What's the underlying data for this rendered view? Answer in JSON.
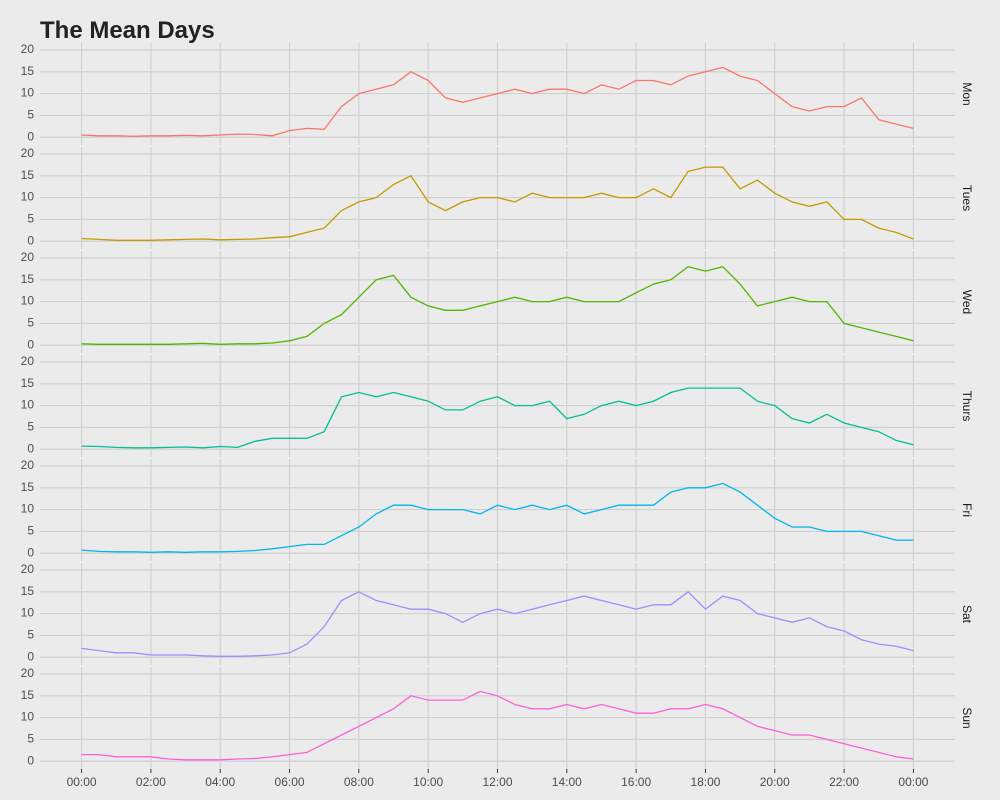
{
  "chart_data": {
    "type": "line",
    "title": "The Mean Days",
    "facet": true,
    "x": [
      0,
      0.5,
      1,
      1.5,
      2,
      2.5,
      3,
      3.5,
      4,
      4.5,
      5,
      5.5,
      6,
      6.5,
      7,
      7.5,
      8,
      8.5,
      9,
      9.5,
      10,
      10.5,
      11,
      11.5,
      12,
      12.5,
      13,
      13.5,
      14,
      14.5,
      15,
      15.5,
      16,
      16.5,
      17,
      17.5,
      18,
      18.5,
      19,
      19.5,
      20,
      20.5,
      21,
      21.5,
      22,
      22.5,
      23,
      23.5,
      24
    ],
    "xlim": [
      -1.2,
      25.2
    ],
    "xticks": [
      {
        "value": 0,
        "label": "00:00"
      },
      {
        "value": 2,
        "label": "02:00"
      },
      {
        "value": 4,
        "label": "04:00"
      },
      {
        "value": 6,
        "label": "06:00"
      },
      {
        "value": 8,
        "label": "08:00"
      },
      {
        "value": 10,
        "label": "10:00"
      },
      {
        "value": 12,
        "label": "12:00"
      },
      {
        "value": 14,
        "label": "14:00"
      },
      {
        "value": 16,
        "label": "16:00"
      },
      {
        "value": 18,
        "label": "18:00"
      },
      {
        "value": 20,
        "label": "20:00"
      },
      {
        "value": 22,
        "label": "22:00"
      },
      {
        "value": 24,
        "label": "00:00"
      }
    ],
    "ylim": [
      -1.8,
      21.6
    ],
    "yticks": [
      0,
      5,
      10,
      15,
      20
    ],
    "grid": true,
    "series": [
      {
        "name": "Mon",
        "color": "#F8766D",
        "values": [
          0.5,
          0.3,
          0.3,
          0.2,
          0.3,
          0.3,
          0.4,
          0.3,
          0.5,
          0.7,
          0.6,
          0.3,
          1.5,
          2,
          1.8,
          7,
          10,
          11,
          12,
          15,
          13,
          9,
          8,
          9,
          10,
          11,
          10,
          11,
          11,
          10,
          12,
          11,
          13,
          13,
          12,
          14,
          15,
          16,
          14,
          13,
          10,
          7,
          6,
          7,
          7,
          9,
          4,
          3,
          2
        ]
      },
      {
        "name": "Tues",
        "color": "#C49A00",
        "values": [
          0.6,
          0.4,
          0.2,
          0.2,
          0.2,
          0.3,
          0.4,
          0.5,
          0.3,
          0.4,
          0.5,
          0.8,
          1,
          2,
          3,
          7,
          9,
          10,
          13,
          15,
          9,
          7,
          9,
          10,
          10,
          9,
          11,
          10,
          10,
          10,
          11,
          10,
          10,
          12,
          10,
          16,
          17,
          17,
          12,
          14,
          11,
          9,
          8,
          9,
          5,
          5,
          3,
          2,
          0.5
        ]
      },
      {
        "name": "Wed",
        "color": "#53B400",
        "values": [
          0.3,
          0.2,
          0.2,
          0.2,
          0.2,
          0.2,
          0.3,
          0.4,
          0.2,
          0.3,
          0.3,
          0.5,
          1,
          2,
          5,
          7,
          11,
          15,
          16,
          11,
          9,
          8,
          8,
          9,
          10,
          11,
          10,
          10,
          11,
          10,
          10,
          10,
          12,
          14,
          15,
          18,
          17,
          18,
          14,
          9,
          10,
          11,
          10,
          10,
          5,
          4,
          3,
          2,
          1
        ]
      },
      {
        "name": "Thurs",
        "color": "#00C094",
        "values": [
          0.7,
          0.6,
          0.4,
          0.3,
          0.3,
          0.4,
          0.5,
          0.3,
          0.6,
          0.4,
          1.8,
          2.5,
          2.5,
          2.5,
          4,
          12,
          13,
          12,
          13,
          12,
          11,
          9,
          9,
          11,
          12,
          10,
          10,
          11,
          7,
          8,
          10,
          11,
          10,
          11,
          13,
          14,
          14,
          14,
          14,
          11,
          10,
          7,
          6,
          8,
          6,
          5,
          4,
          2,
          1
        ]
      },
      {
        "name": "Fri",
        "color": "#00B6EB",
        "values": [
          0.7,
          0.4,
          0.3,
          0.3,
          0.2,
          0.3,
          0.2,
          0.3,
          0.3,
          0.4,
          0.6,
          1,
          1.5,
          2,
          2,
          4,
          6,
          9,
          11,
          11,
          10,
          10,
          10,
          9,
          11,
          10,
          11,
          10,
          11,
          9,
          10,
          11,
          11,
          11,
          14,
          15,
          15,
          16,
          14,
          11,
          8,
          6,
          6,
          5,
          5,
          5,
          4,
          3,
          3
        ]
      },
      {
        "name": "Sat",
        "color": "#A58AFF",
        "values": [
          2,
          1.5,
          1,
          1,
          0.5,
          0.5,
          0.5,
          0.3,
          0.2,
          0.2,
          0.3,
          0.5,
          1,
          3,
          7,
          13,
          15,
          13,
          12,
          11,
          11,
          10,
          8,
          10,
          11,
          10,
          11,
          12,
          13,
          14,
          13,
          12,
          11,
          12,
          12,
          15,
          11,
          14,
          13,
          10,
          9,
          8,
          9,
          7,
          6,
          4,
          3,
          2.5,
          1.5
        ]
      },
      {
        "name": "Sun",
        "color": "#FB61D7",
        "values": [
          1.5,
          1.5,
          1,
          1,
          1,
          0.5,
          0.3,
          0.3,
          0.3,
          0.5,
          0.6,
          1,
          1.5,
          2,
          4,
          6,
          8,
          10,
          12,
          15,
          14,
          14,
          14,
          16,
          15,
          13,
          12,
          12,
          13,
          12,
          13,
          12,
          11,
          11,
          12,
          12,
          13,
          12,
          10,
          8,
          7,
          6,
          6,
          5,
          4,
          3,
          2,
          1,
          0.5
        ]
      }
    ]
  }
}
